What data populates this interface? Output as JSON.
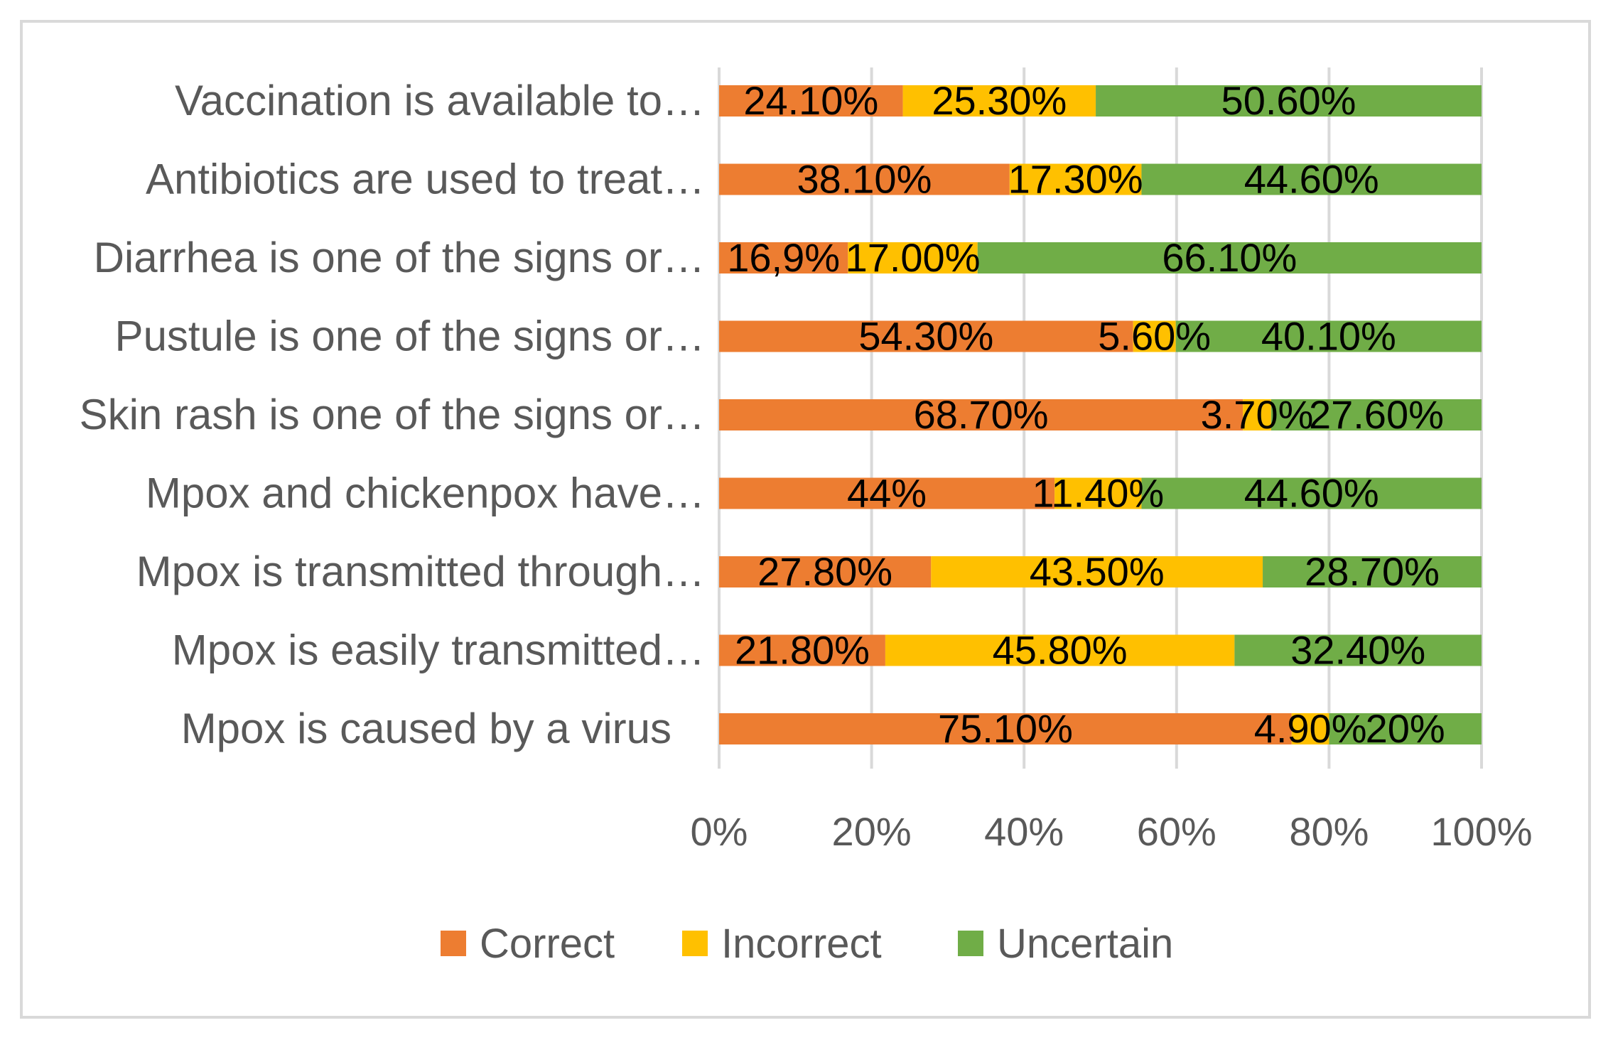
{
  "chart_data": {
    "type": "bar",
    "orientation": "horizontal",
    "stacked": "percent",
    "categories": [
      "Vaccination is available to…",
      "Antibiotics are used to treat…",
      "Diarrhea is one of the signs or…",
      "Pustule is one of the signs or…",
      "Skin rash is one of the signs or…",
      "Mpox and chickenpox have…",
      "Mpox is transmitted through…",
      "Mpox is easily transmitted…",
      "Mpox is caused by a virus"
    ],
    "series": [
      {
        "name": "Correct",
        "color": "#ED7D31",
        "values": [
          24.1,
          38.1,
          16.9,
          54.3,
          68.7,
          44,
          27.8,
          21.8,
          75.1
        ],
        "labels": [
          "24.10%",
          "38.10%",
          "16,9%",
          "54.30%",
          "68.70%",
          "44%",
          "27.80%",
          "21.80%",
          "75.10%"
        ]
      },
      {
        "name": "Incorrect",
        "color": "#FFC000",
        "values": [
          25.3,
          17.3,
          17.0,
          5.6,
          3.7,
          11.4,
          43.5,
          45.8,
          4.9
        ],
        "labels": [
          "25.30%",
          "17.30%",
          "17.00%",
          "5.60%",
          "3.70%",
          "11.40%",
          "43.50%",
          "45.80%",
          "4.90%"
        ]
      },
      {
        "name": "Uncertain",
        "color": "#70AD47",
        "values": [
          50.6,
          44.6,
          66.1,
          40.1,
          27.6,
          44.6,
          28.7,
          32.4,
          20
        ],
        "labels": [
          "50.60%",
          "44.60%",
          "66.10%",
          "40.10%",
          "27.60%",
          "44.60%",
          "28.70%",
          "32.40%",
          "20%"
        ]
      }
    ],
    "x_ticks": [
      "0%",
      "20%",
      "40%",
      "60%",
      "80%",
      "100%"
    ],
    "xlim": [
      0,
      100
    ],
    "grid": "vertical",
    "legend": "bottom"
  }
}
